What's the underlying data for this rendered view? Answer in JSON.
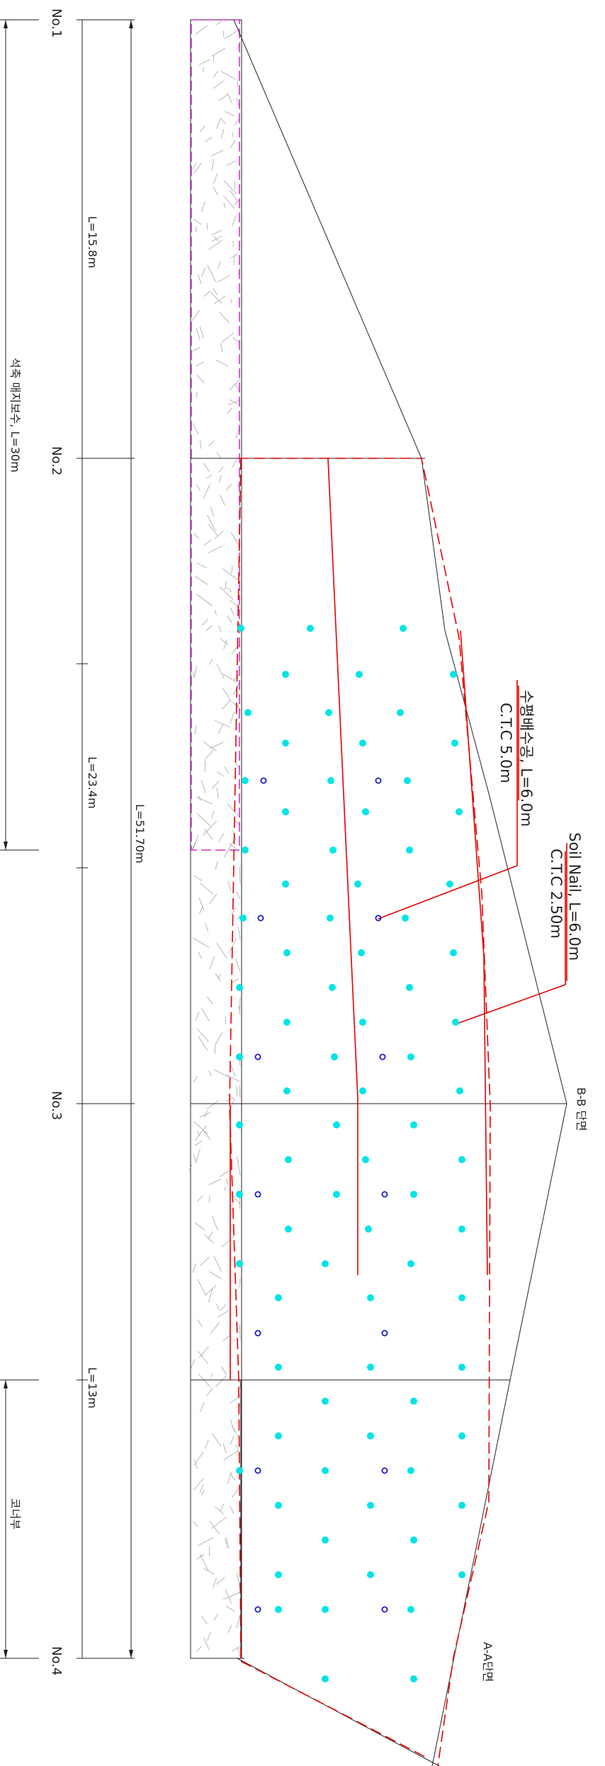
{
  "stations": {
    "no1": "No.1",
    "no2": "No.2",
    "no3": "No.3",
    "no4": "No.4"
  },
  "dimensions": {
    "seg1": "L=15.8m",
    "seg2": "L=23.4m",
    "seg3": "L=13m",
    "total": "L=51.70m"
  },
  "zones": {
    "stone_masonry": "석축 매지보수, L=30m",
    "corner": "코너부"
  },
  "callouts": {
    "drain_title": "수평배수공, L=6.0m",
    "drain_ctc": "C.T.C 5.0m",
    "nail_title": "Soil Nail, L=6.0m",
    "nail_ctc": "C.T.C 2.50m"
  },
  "sections": {
    "bb": "B-B 단면",
    "aa": "A-A단면"
  },
  "colors": {
    "nail_point": "#00e5e5",
    "drain_point": "#1a1acc",
    "design_line": "#e60000",
    "masonry_outline": "#cc33cc",
    "linework": "#222222",
    "hatch": "#9a9a9a"
  }
}
